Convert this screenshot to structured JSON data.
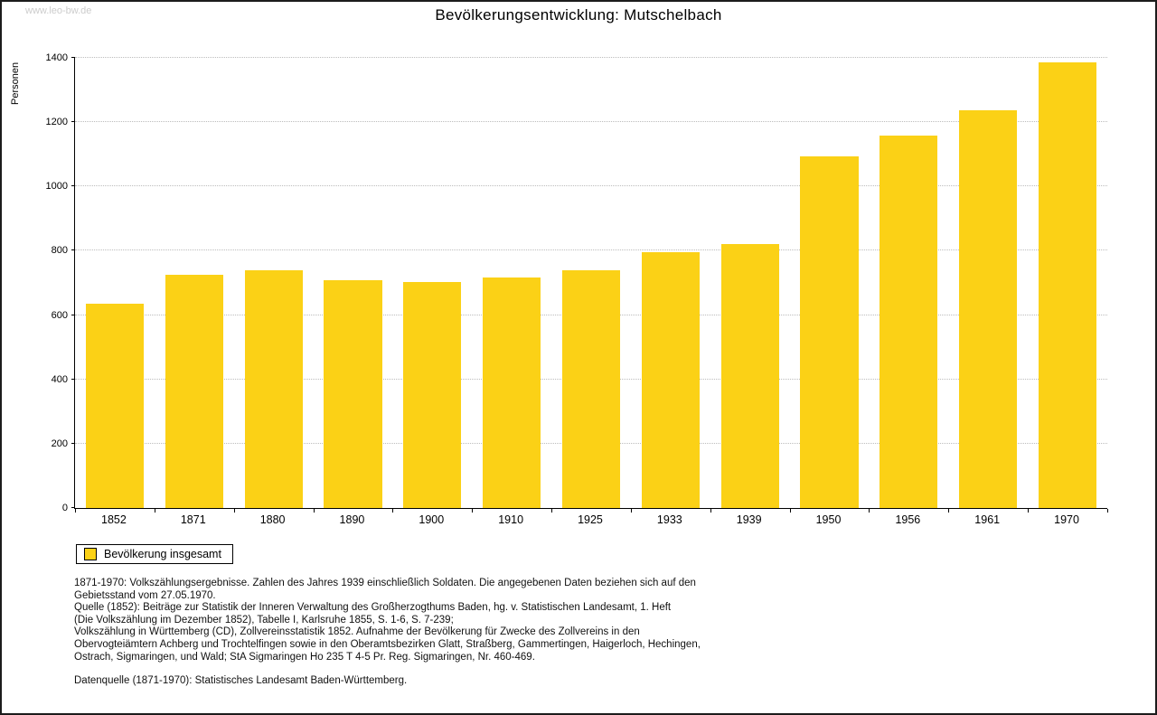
{
  "page": {
    "watermark": "www.leo-bw.de"
  },
  "chart_data": {
    "type": "bar",
    "title": "Bevölkerungsentwicklung: Mutschelbach",
    "xlabel": "",
    "ylabel": "Personen",
    "categories": [
      "1852",
      "1871",
      "1880",
      "1890",
      "1900",
      "1910",
      "1925",
      "1933",
      "1939",
      "1950",
      "1956",
      "1961",
      "1970"
    ],
    "values": [
      635,
      725,
      740,
      708,
      703,
      718,
      739,
      795,
      820,
      1095,
      1158,
      1238,
      1385
    ],
    "ylim": [
      0,
      1400
    ],
    "ytick_step": 200,
    "grid": true,
    "bar_color": "#FBD116",
    "legend": {
      "label": "Bevölkerung insgesamt",
      "position": "bottom-left"
    }
  },
  "footnotes": {
    "lines": [
      "1871-1970: Volkszählungsergebnisse. Zahlen des Jahres 1939 einschließlich Soldaten. Die angegebenen Daten beziehen sich auf den",
      "Gebietsstand vom 27.05.1970.",
      "Quelle (1852): Beiträge zur Statistik der Inneren Verwaltung des Großherzogthums Baden, hg. v. Statistischen Landesamt, 1. Heft",
      "(Die Volkszählung im Dezember 1852), Tabelle I, Karlsruhe 1855, S. 1-6, S. 7-239;",
      "Volkszählung in Württemberg (CD), Zollvereinsstatistik 1852. Aufnahme der Bevölkerung für Zwecke des Zollvereins in den",
      "Obervogteiämtern Achberg und Trochtelfingen sowie in den Oberamtsbezirken Glatt, Straßberg, Gammertingen, Haigerloch, Hechingen,",
      "Ostrach, Sigmaringen, und Wald; StA Sigmaringen Ho 235 T 4-5 Pr. Reg. Sigmaringen, Nr. 460-469."
    ],
    "datasource": "Datenquelle (1871-1970): Statistisches Landesamt Baden-Württemberg."
  }
}
